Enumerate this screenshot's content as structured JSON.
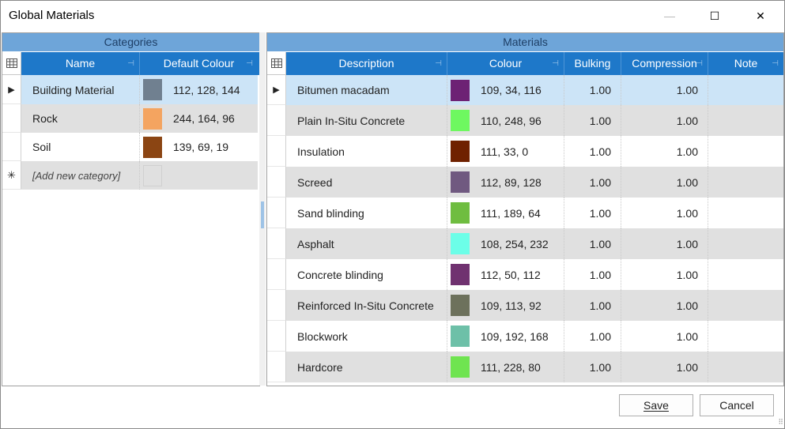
{
  "window": {
    "title": "Global Materials",
    "minimize_glyph": "—",
    "maximize_glyph": "☐",
    "close_glyph": "✕"
  },
  "categories": {
    "caption": "Categories",
    "columns": {
      "name": "Name",
      "default_colour": "Default Colour"
    },
    "rows": [
      {
        "name": "Building Material",
        "colour_text": "112, 128, 144",
        "swatch": "#708090",
        "selected": true
      },
      {
        "name": "Rock",
        "colour_text": "244, 164, 96",
        "swatch": "#f4a460",
        "selected": false
      },
      {
        "name": "Soil",
        "colour_text": "139, 69, 19",
        "swatch": "#8b4513",
        "selected": false
      }
    ],
    "new_row_placeholder": "[Add new category]",
    "new_row_glyph": "✳"
  },
  "materials": {
    "caption": "Materials",
    "columns": {
      "description": "Description",
      "colour": "Colour",
      "bulking": "Bulking",
      "compression": "Compression",
      "note": "Note"
    },
    "rows": [
      {
        "description": "Bitumen macadam",
        "colour_text": "109, 34, 116",
        "swatch": "#6d2274",
        "bulking": "1.00",
        "compression": "1.00",
        "note": "",
        "selected": true
      },
      {
        "description": "Plain In-Situ Concrete",
        "colour_text": "110, 248, 96",
        "swatch": "#6ef860",
        "bulking": "1.00",
        "compression": "1.00",
        "note": "",
        "selected": false
      },
      {
        "description": "Insulation",
        "colour_text": "111, 33, 0",
        "swatch": "#6f2100",
        "bulking": "1.00",
        "compression": "1.00",
        "note": "",
        "selected": false
      },
      {
        "description": "Screed",
        "colour_text": "112, 89, 128",
        "swatch": "#705980",
        "bulking": "1.00",
        "compression": "1.00",
        "note": "",
        "selected": false
      },
      {
        "description": "Sand blinding",
        "colour_text": "111, 189, 64",
        "swatch": "#6fbd40",
        "bulking": "1.00",
        "compression": "1.00",
        "note": "",
        "selected": false
      },
      {
        "description": "Asphalt",
        "colour_text": "108, 254, 232",
        "swatch": "#6cfee8",
        "bulking": "1.00",
        "compression": "1.00",
        "note": "",
        "selected": false
      },
      {
        "description": "Concrete blinding",
        "colour_text": "112, 50, 112",
        "swatch": "#703270",
        "bulking": "1.00",
        "compression": "1.00",
        "note": "",
        "selected": false
      },
      {
        "description": "Reinforced In-Situ Concrete",
        "colour_text": "109, 113, 92",
        "swatch": "#6d715c",
        "bulking": "1.00",
        "compression": "1.00",
        "note": "",
        "selected": false
      },
      {
        "description": "Blockwork",
        "colour_text": "109, 192, 168",
        "swatch": "#6dc0a8",
        "bulking": "1.00",
        "compression": "1.00",
        "note": "",
        "selected": false
      },
      {
        "description": "Hardcore",
        "colour_text": "111, 228, 80",
        "swatch": "#6fe450",
        "bulking": "1.00",
        "compression": "1.00",
        "note": "",
        "selected": false
      }
    ]
  },
  "buttons": {
    "save": "Save",
    "cancel": "Cancel"
  },
  "glyphs": {
    "pin": "⊣",
    "row_indicator": "▶",
    "grip": "⠿"
  },
  "icons": {
    "column-chooser": "column-chooser-icon"
  },
  "colors": {
    "header_blue": "#1e78c9",
    "caption_blue": "#6ea5d9",
    "selection": "#cce4f7",
    "alt_row": "#e0e0e0"
  }
}
